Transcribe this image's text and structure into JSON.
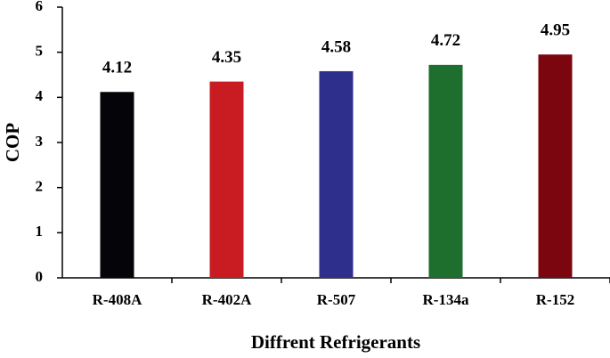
{
  "chart_data": {
    "type": "bar",
    "x_label": "Diffrent Refrigerants",
    "y_label": "COP",
    "categories": [
      "R-408A",
      "R-402A",
      "R-507",
      "R-134a",
      "R-152"
    ],
    "values": [
      4.12,
      4.35,
      4.58,
      4.72,
      4.95
    ],
    "colors": [
      "#050509",
      "#c81c22",
      "#2e2e8c",
      "#1e6e2e",
      "#7c0610"
    ],
    "ylim": [
      0,
      6
    ],
    "yticks": [
      0,
      1,
      2,
      3,
      4,
      5,
      6
    ],
    "grid": false
  }
}
